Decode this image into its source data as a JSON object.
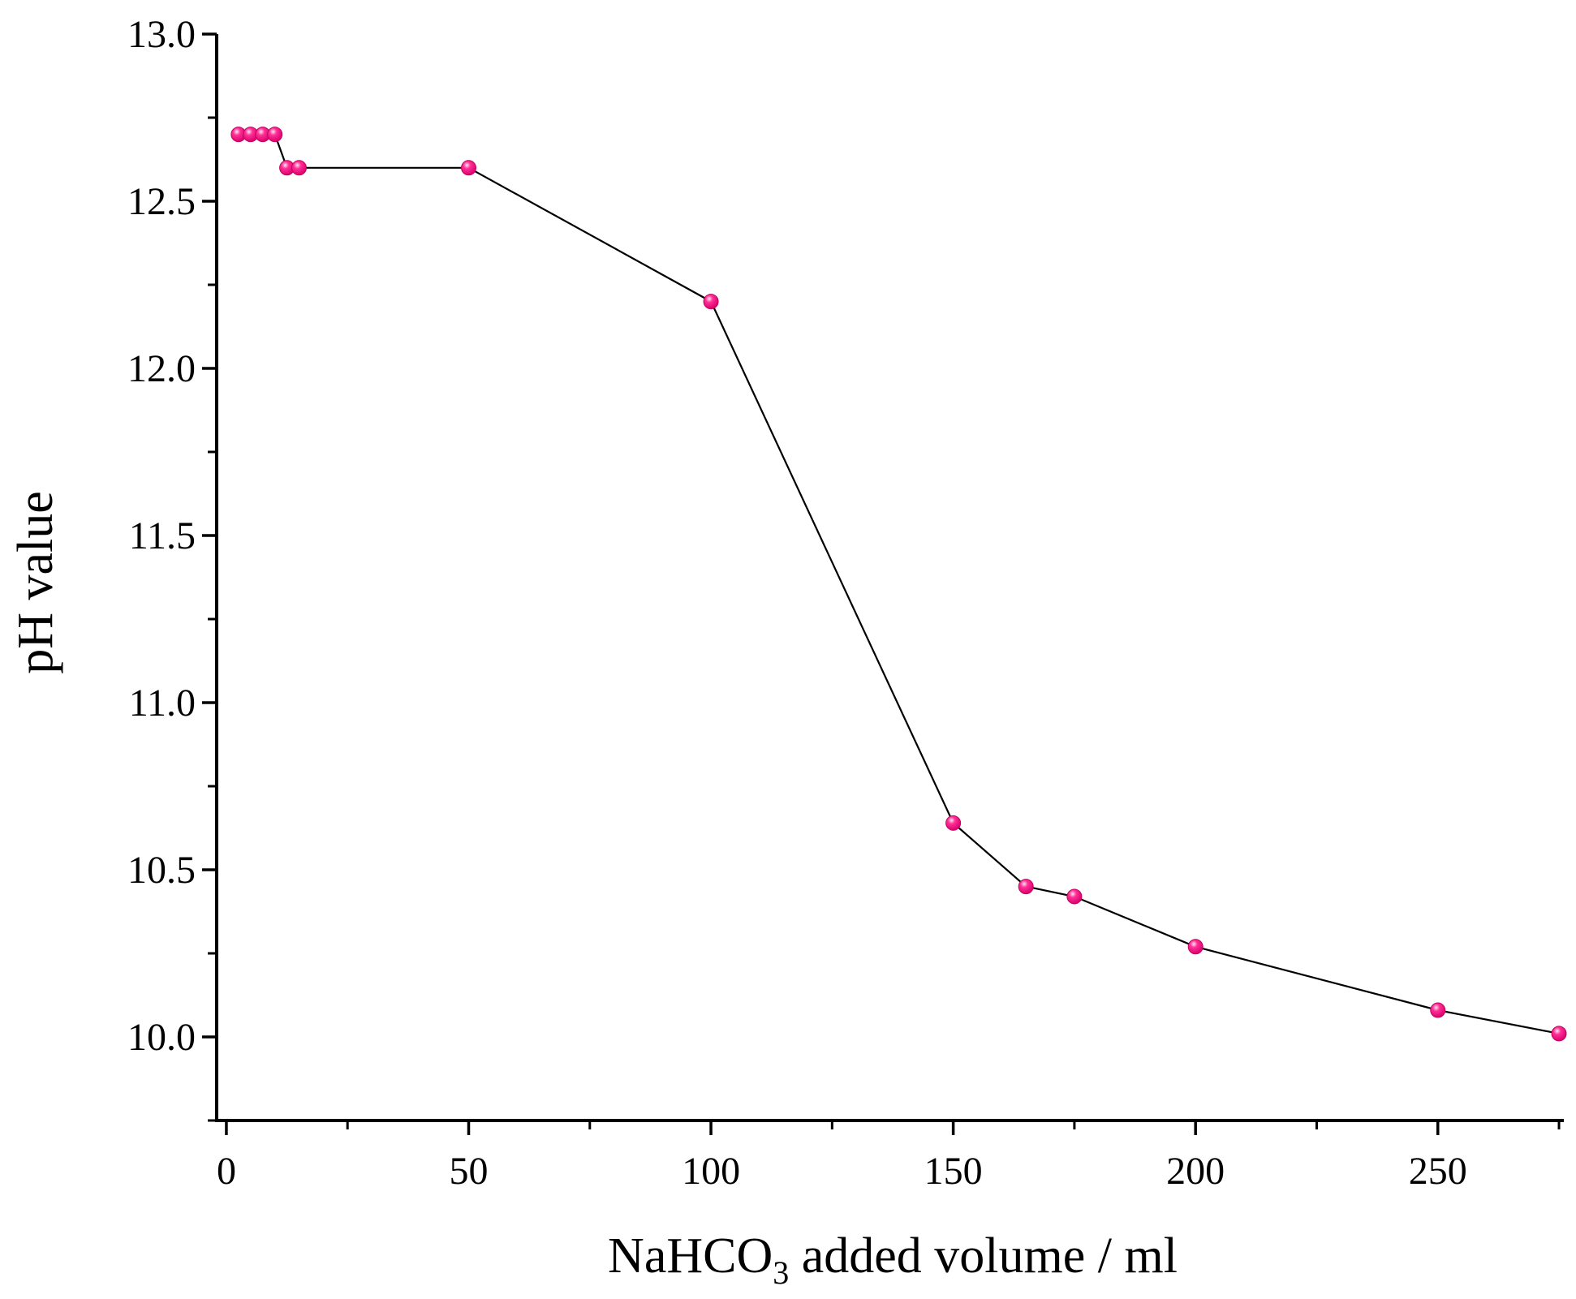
{
  "chart_data": {
    "type": "line",
    "xlabel_main": "NaHCO",
    "xlabel_sub": "3",
    "xlabel_rest": " added volume / ml",
    "ylabel": "pH value",
    "xlim": [
      -2,
      276
    ],
    "ylim": [
      9.75,
      13.0
    ],
    "x_ticks": [
      0,
      50,
      100,
      150,
      200,
      250
    ],
    "y_ticks": [
      10.0,
      10.5,
      11.0,
      11.5,
      12.0,
      12.5,
      13.0
    ],
    "x_tick_labels": [
      "0",
      "50",
      "100",
      "150",
      "200",
      "250"
    ],
    "y_tick_labels": [
      "10.0",
      "10.5",
      "11.0",
      "11.5",
      "12.0",
      "12.5",
      "13.0"
    ],
    "grid": false,
    "line_color": "#000000",
    "marker_color": "#ff0f86",
    "series": [
      {
        "x": [
          2.5,
          5,
          7.5,
          10,
          12.5,
          15,
          50,
          100,
          150,
          165,
          175,
          200,
          250,
          275
        ],
        "y": [
          12.7,
          12.7,
          12.7,
          12.7,
          12.6,
          12.6,
          12.6,
          12.2,
          10.64,
          10.45,
          10.42,
          10.27,
          10.08,
          10.01
        ]
      }
    ]
  }
}
